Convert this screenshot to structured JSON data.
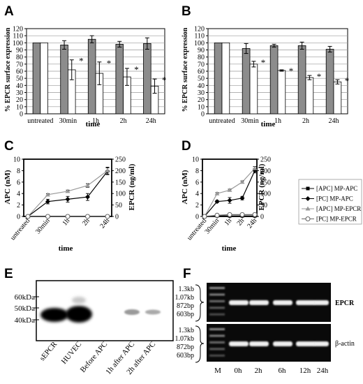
{
  "chart_data": [
    {
      "panel": "A",
      "type": "bar",
      "ylabel": "% EPCR surface expression",
      "xlabel": "time",
      "ylim": [
        0,
        120
      ],
      "yticks": [
        0,
        10,
        20,
        30,
        40,
        50,
        60,
        70,
        80,
        90,
        100,
        110,
        120
      ],
      "categories": [
        "untreated",
        "30min",
        "1h",
        "2h",
        "24h"
      ],
      "series": [
        {
          "color": "#8c8c8c",
          "values": [
            100,
            97,
            105,
            98,
            99
          ],
          "errors": [
            0,
            6,
            5,
            4,
            8
          ]
        },
        {
          "color": "#ffffff",
          "values": [
            100,
            62,
            57,
            52,
            39
          ],
          "errors": [
            0,
            14,
            16,
            12,
            10
          ]
        }
      ],
      "significance": [
        "",
        "*",
        "*",
        "*",
        "*"
      ]
    },
    {
      "panel": "B",
      "type": "bar",
      "ylabel": "% EPCR surface expression",
      "xlabel": "time",
      "ylim": [
        0,
        120
      ],
      "yticks": [
        0,
        10,
        20,
        30,
        40,
        50,
        60,
        70,
        80,
        90,
        100,
        110,
        120
      ],
      "categories": [
        "untreated",
        "30min",
        "1h",
        "2h",
        "24h"
      ],
      "series": [
        {
          "color": "#8c8c8c",
          "values": [
            100,
            92,
            96,
            96,
            91
          ],
          "errors": [
            0,
            7,
            2,
            5,
            4
          ]
        },
        {
          "color": "#ffffff",
          "values": [
            100,
            70,
            61,
            51,
            45
          ],
          "errors": [
            0,
            4,
            1,
            3,
            3
          ]
        }
      ],
      "significance": [
        "",
        "*",
        "*",
        "*",
        "*"
      ]
    },
    {
      "panel": "C",
      "type": "line",
      "xlabel": "time",
      "ylabel_left": "APC (nM)",
      "ylabel_right": "EPCR (ng/ml)",
      "ylim_left": [
        0,
        10
      ],
      "yticks_left": [
        0,
        2,
        4,
        6,
        8,
        10
      ],
      "ylim_right": [
        0,
        250
      ],
      "yticks_right": [
        0,
        50,
        100,
        150,
        200,
        250
      ],
      "categories": [
        "untreated",
        "30min",
        "1h",
        "2h",
        "24h"
      ],
      "series": [
        {
          "legend_index": 0,
          "axis": "left",
          "marker": "square",
          "color": "#000000",
          "values": [
            0,
            0,
            0,
            0,
            0
          ],
          "errors": [
            0,
            0,
            0,
            0,
            0
          ]
        },
        {
          "legend_index": 1,
          "axis": "left",
          "marker": "diamond",
          "color": "#000000",
          "values": [
            0,
            2.6,
            3.0,
            3.4,
            7.9
          ],
          "errors": [
            0,
            0.4,
            0.5,
            0.6,
            0.6
          ]
        },
        {
          "legend_index": 2,
          "axis": "right",
          "marker": "triangle",
          "color": "#999999",
          "values": [
            0,
            95,
            110,
            135,
            200
          ],
          "errors": [
            0,
            4,
            5,
            8,
            15
          ]
        },
        {
          "legend_index": 3,
          "axis": "right",
          "marker": "circle",
          "color": "#666666",
          "values": [
            0,
            0,
            0,
            0,
            0
          ],
          "errors": [
            0,
            0,
            0,
            0,
            0
          ]
        }
      ]
    },
    {
      "panel": "D",
      "type": "line",
      "xlabel": "time",
      "ylabel_left": "APC (nM)",
      "ylabel_right": "EPCR (ng/ml)",
      "ylim_left": [
        0,
        10
      ],
      "yticks_left": [
        0,
        2,
        4,
        6,
        8,
        10
      ],
      "ylim_right": [
        0,
        250
      ],
      "yticks_right": [
        0,
        50,
        100,
        150,
        200,
        250
      ],
      "categories": [
        "untreated",
        "30min",
        "1h",
        "2h",
        "24h"
      ],
      "series": [
        {
          "legend_index": 0,
          "axis": "left",
          "marker": "square",
          "color": "#000000",
          "values": [
            0,
            0.1,
            0.1,
            0.1,
            0.1
          ],
          "errors": [
            0,
            0,
            0,
            0,
            0
          ]
        },
        {
          "legend_index": 1,
          "axis": "left",
          "marker": "diamond",
          "color": "#000000",
          "values": [
            0,
            2.6,
            2.8,
            3.2,
            8.0
          ],
          "errors": [
            0,
            0.2,
            0.5,
            0.3,
            0.4
          ]
        },
        {
          "legend_index": 2,
          "axis": "right",
          "marker": "triangle",
          "color": "#999999",
          "values": [
            0,
            100,
            115,
            150,
            210
          ],
          "errors": [
            0,
            4,
            4,
            5,
            8
          ]
        },
        {
          "legend_index": 3,
          "axis": "right",
          "marker": "circle",
          "color": "#666666",
          "values": [
            0,
            5,
            8,
            8,
            8
          ],
          "errors": [
            0,
            0,
            0,
            0,
            0
          ]
        }
      ],
      "legend": [
        "[APC] MP-APC",
        "[PC] MP-APC",
        "[APC] MP-EPCR",
        "[PC] MP-EPCR"
      ]
    }
  ],
  "panel_labels": [
    "A",
    "B",
    "C",
    "D",
    "E",
    "F"
  ],
  "blot_e": {
    "markers": [
      "60kDa",
      "50kDa",
      "40kDa"
    ],
    "lanes": [
      "sEPCR",
      "HUVEC",
      "Before APC",
      "1h after APC",
      "2h after APC"
    ]
  },
  "gel_f": {
    "markers": [
      "1.3kb",
      "1.07kb",
      "872bp",
      "603bp"
    ],
    "lanes": [
      "M",
      "0h",
      "2h",
      "6h",
      "12h",
      "24h"
    ],
    "rows": [
      "EPCR",
      "β-actin"
    ]
  }
}
